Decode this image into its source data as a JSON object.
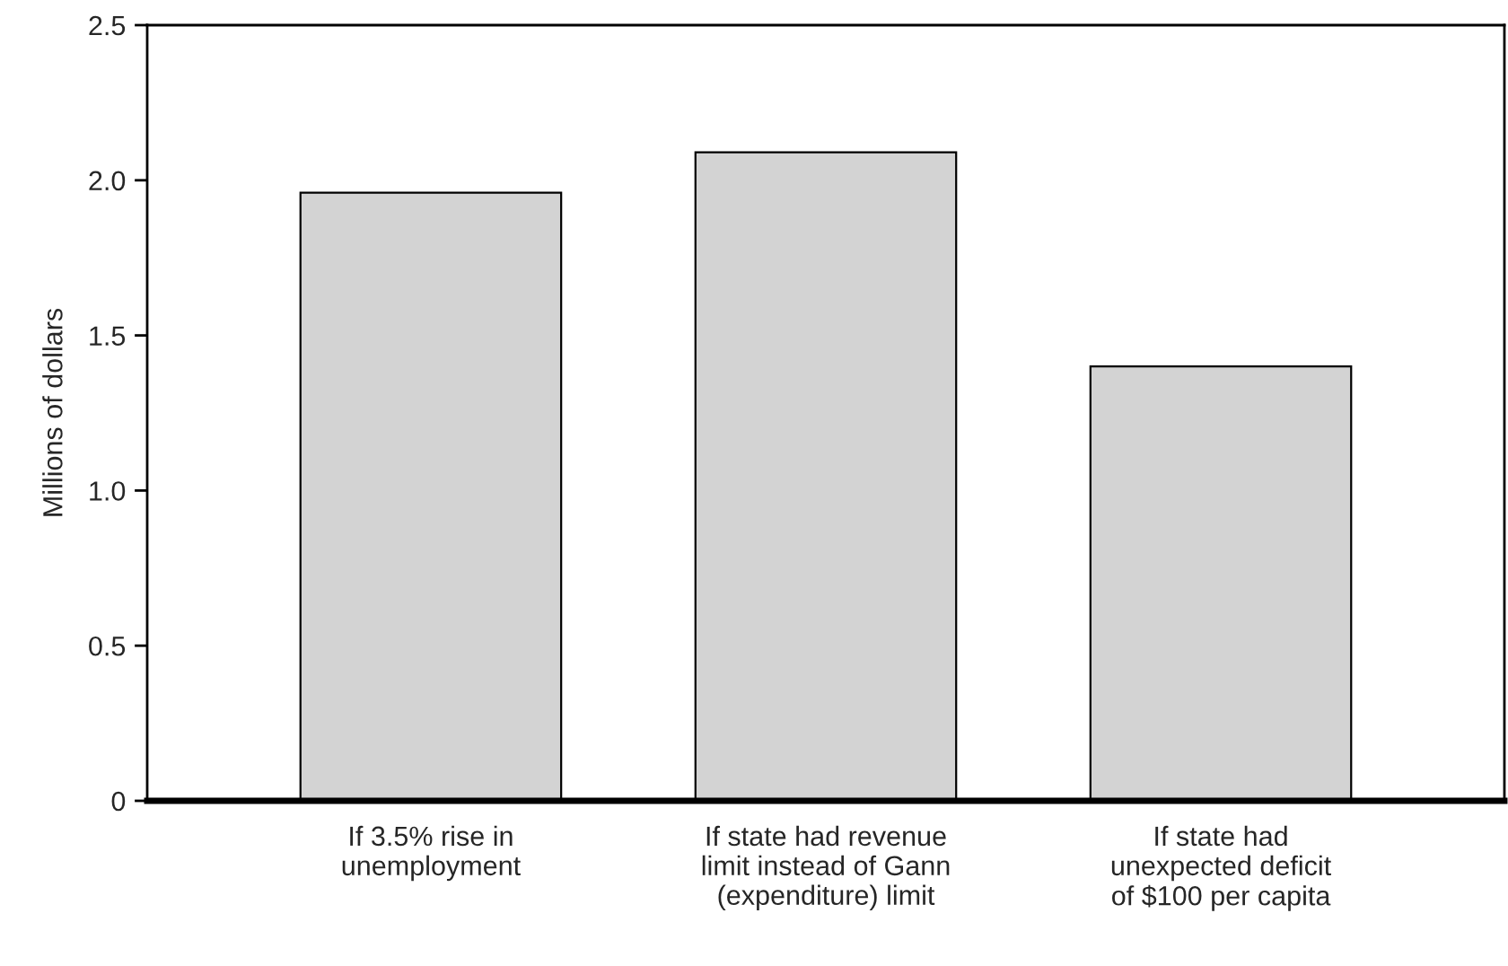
{
  "chart_data": {
    "type": "bar",
    "ylabel": "Millions of dollars",
    "categories": [
      "If 3.5% rise in\nunemployment",
      "If state had revenue\nlimit instead of Gann\n(expenditure) limit",
      "If state had\nunexpected deficit\nof $100 per capita"
    ],
    "values": [
      1.96,
      2.09,
      1.4
    ],
    "color": "#d3d3d3",
    "ylim": [
      0,
      2.5
    ],
    "yticks": [
      0,
      {
        "value": 0.5,
        "label": "0.5"
      },
      {
        "value": 1,
        "label": "1.0"
      },
      {
        "value": 1.5,
        "label": "1.5"
      },
      {
        "value": 2,
        "label": "2.0"
      },
      {
        "value": 2.5,
        "label": "2.5"
      }
    ],
    "grid": false
  }
}
